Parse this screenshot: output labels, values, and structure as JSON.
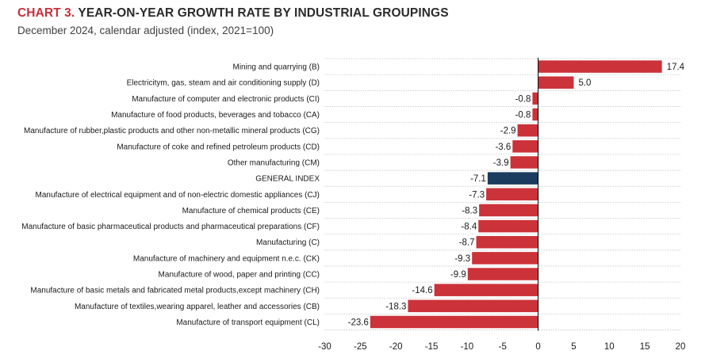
{
  "header": {
    "chart_number": "CHART 3.",
    "title": "YEAR-ON-YEAR GROWTH RATE BY INDUSTRIAL GROUPINGS",
    "subtitle": "December 2024, calendar adjusted (index, 2021=100)"
  },
  "colors": {
    "bar": "#cc3239",
    "highlight": "#1b3b5f",
    "title_accent": "#c8303a"
  },
  "chart_data": {
    "type": "bar",
    "orientation": "horizontal",
    "title": "CHART 3. YEAR-ON-YEAR GROWTH RATE BY INDUSTRIAL GROUPINGS",
    "subtitle": "December 2024, calendar adjusted (index, 2021=100)",
    "categories": [
      "Mining and quarrying (B)",
      "Electricitym, gas, steam and air conditioning supply (D)",
      "Manufacture of computer and electronic products (CI)",
      "Manufacture of food products, beverages and tobacco (CA)",
      "Manufacture of rubber,plastic products and other non-metallic mineral products (CG)",
      "Manufacture of coke and refined petroleum products (CD)",
      "Other manufacturing (CM)",
      "GENERAL INDEX",
      "Manufacture of electrical equipment and of non-electric domestic appliances (CJ)",
      "Manufacture of chemical products (CE)",
      "Manufacture of basic pharmaceutical products and pharmaceutical preparations (CF)",
      "Manufacturing (C)",
      "Manufacture of machinery and equipment n.e.c. (CK)",
      "Manufacture of wood, paper and printing (CC)",
      "Manufacture of basic metals and fabricated metal products,except machinery (CH)",
      "Manufacture of textiles,wearing apparel, leather and accessories (CB)",
      "Manufacture of transport equipment (CL)"
    ],
    "values": [
      17.4,
      5.0,
      -0.8,
      -0.8,
      -2.9,
      -3.6,
      -3.9,
      -7.1,
      -7.3,
      -8.3,
      -8.4,
      -8.7,
      -9.3,
      -9.9,
      -14.6,
      -18.3,
      -23.6
    ],
    "value_labels": [
      "17.4",
      "5.0",
      "-0.8",
      "-0.8",
      "-2.9",
      "-3.6",
      "-3.9",
      "-7.1",
      "-7.3",
      "-8.3",
      "-8.4",
      "-8.7",
      "-9.3",
      "-9.9",
      "-14.6",
      "-18.3",
      "-23.6"
    ],
    "highlight_index": 7,
    "xlim": [
      -30,
      20
    ],
    "xticks": [
      -30,
      -25,
      -20,
      -15,
      -10,
      -5,
      0,
      5,
      10,
      15,
      20
    ],
    "xtick_labels": [
      "-30",
      "-25",
      "-20",
      "-15",
      "-10",
      "-5",
      "0",
      "5",
      "10",
      "15",
      "20"
    ],
    "xlabel": "",
    "ylabel": "",
    "grid": "horizontal dotted"
  }
}
